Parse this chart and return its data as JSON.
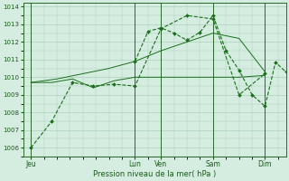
{
  "xlabel": "Pression niveau de la mer( hPa )",
  "ylim": [
    1005.5,
    1014.2
  ],
  "yticks": [
    1006,
    1007,
    1008,
    1009,
    1010,
    1011,
    1012,
    1013,
    1014
  ],
  "bg_color": "#d4ede0",
  "grid_color": "#aacfb8",
  "line_color": "#1a6e1a",
  "xtick_labels": [
    "Jeu",
    "Lun",
    "Ven",
    "Sam",
    "Dim"
  ],
  "xtick_positions": [
    0,
    40,
    50,
    70,
    90
  ],
  "vline_positions": [
    0,
    40,
    50,
    70,
    90
  ],
  "xlim": [
    -3,
    98
  ],
  "line1_x": [
    0,
    8,
    16,
    24,
    32,
    40,
    50,
    60,
    70,
    80,
    90
  ],
  "line1_y": [
    1006.0,
    1007.5,
    1009.7,
    1009.5,
    1009.6,
    1009.5,
    1012.75,
    1013.5,
    1013.3,
    1009.0,
    1010.2
  ],
  "line2_x": [
    0,
    8,
    16,
    24,
    32,
    40,
    50,
    60,
    70,
    80,
    90
  ],
  "line2_y": [
    1009.7,
    1009.7,
    1009.9,
    1009.4,
    1009.8,
    1010.0,
    1010.0,
    1010.0,
    1010.0,
    1010.0,
    1010.1
  ],
  "line3_x": [
    0,
    10,
    20,
    30,
    40,
    50,
    60,
    70,
    80,
    90
  ],
  "line3_y": [
    1009.7,
    1009.9,
    1010.2,
    1010.5,
    1010.9,
    1011.5,
    1012.0,
    1012.5,
    1012.2,
    1010.3
  ],
  "line4_x": [
    40,
    45,
    50,
    55,
    60,
    65,
    70,
    75,
    80,
    85,
    90,
    94,
    98
  ],
  "line4_y": [
    1010.9,
    1012.6,
    1012.8,
    1012.5,
    1012.1,
    1012.55,
    1013.5,
    1011.5,
    1010.4,
    1009.0,
    1008.35,
    1010.85,
    1010.3
  ]
}
